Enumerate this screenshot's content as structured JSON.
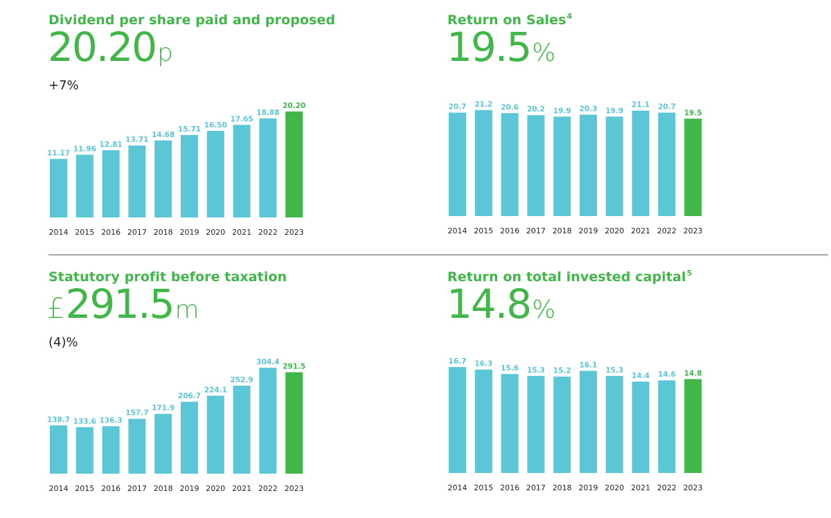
{
  "colors": {
    "accent": "#41b649",
    "bar": "#5ac6d6",
    "bar_highlight": "#41b649",
    "label": "#5ac6d6",
    "label_highlight": "#41b649",
    "axis_text": "#222222",
    "divider": "#a6a6a6"
  },
  "panels": [
    {
      "title": "Dividend per share paid and proposed",
      "footnote": "",
      "prefix": "",
      "value": "20.20",
      "unit": "p",
      "change": "+7%"
    },
    {
      "title": "Return on Sales",
      "footnote": "4",
      "prefix": "",
      "value": "19.5",
      "unit": "%",
      "change": ""
    },
    {
      "title": "Statutory profit before taxation",
      "footnote": "",
      "prefix": "£",
      "value": "291.5",
      "unit": "m",
      "change": "(4)%"
    },
    {
      "title": "Return on total invested capital",
      "footnote": "5",
      "prefix": "",
      "value": "14.8",
      "unit": "%",
      "change": ""
    }
  ],
  "chart_data": [
    {
      "type": "bar",
      "title": "Dividend per share paid and proposed",
      "xlabel": "",
      "ylabel": "",
      "unit": "p",
      "categories": [
        "2014",
        "2015",
        "2016",
        "2017",
        "2018",
        "2019",
        "2020",
        "2021",
        "2022",
        "2023"
      ],
      "values": [
        11.17,
        11.96,
        12.81,
        13.71,
        14.68,
        15.71,
        16.5,
        17.65,
        18.88,
        20.2
      ],
      "labels": [
        "11.17",
        "11.96",
        "12.81",
        "13.71",
        "14.68",
        "15.71",
        "16.50",
        "17.65",
        "18.88",
        "20.20"
      ],
      "highlight_index": 9,
      "ylim": [
        0,
        20.2
      ],
      "grid": false,
      "legend": "none"
    },
    {
      "type": "bar",
      "title": "Return on Sales",
      "xlabel": "",
      "ylabel": "",
      "unit": "%",
      "categories": [
        "2014",
        "2015",
        "2016",
        "2017",
        "2018",
        "2019",
        "2020",
        "2021",
        "2022",
        "2023"
      ],
      "values": [
        20.7,
        21.2,
        20.6,
        20.2,
        19.9,
        20.3,
        19.9,
        21.1,
        20.7,
        19.5
      ],
      "labels": [
        "20.7",
        "21.2",
        "20.6",
        "20.2",
        "19.9",
        "20.3",
        "19.9",
        "21.1",
        "20.7",
        "19.5"
      ],
      "highlight_index": 9,
      "ylim": [
        0,
        21.2
      ],
      "grid": false,
      "legend": "none"
    },
    {
      "type": "bar",
      "title": "Statutory profit before taxation",
      "xlabel": "",
      "ylabel": "",
      "unit": "£m",
      "categories": [
        "2014",
        "2015",
        "2016",
        "2017",
        "2018",
        "2019",
        "2020",
        "2021",
        "2022",
        "2023"
      ],
      "values": [
        138.7,
        133.6,
        136.3,
        157.7,
        171.9,
        206.7,
        224.1,
        252.9,
        304.4,
        291.5
      ],
      "labels": [
        "138.7",
        "133.6",
        "136.3",
        "157.7",
        "171.9",
        "206.7",
        "224.1",
        "252.9",
        "304.4",
        "291.5"
      ],
      "highlight_index": 9,
      "ylim": [
        0,
        304.4
      ],
      "grid": false,
      "legend": "none"
    },
    {
      "type": "bar",
      "title": "Return on total invested capital",
      "xlabel": "",
      "ylabel": "",
      "unit": "%",
      "categories": [
        "2014",
        "2015",
        "2016",
        "2017",
        "2018",
        "2019",
        "2020",
        "2021",
        "2022",
        "2023"
      ],
      "values": [
        16.7,
        16.3,
        15.6,
        15.3,
        15.2,
        16.1,
        15.3,
        14.4,
        14.6,
        14.8
      ],
      "labels": [
        "16.7",
        "16.3",
        "15.6",
        "15.3",
        "15.2",
        "16.1",
        "15.3",
        "14.4",
        "14.6",
        "14.8"
      ],
      "highlight_index": 9,
      "ylim": [
        0,
        16.7
      ],
      "grid": false,
      "legend": "none"
    }
  ]
}
